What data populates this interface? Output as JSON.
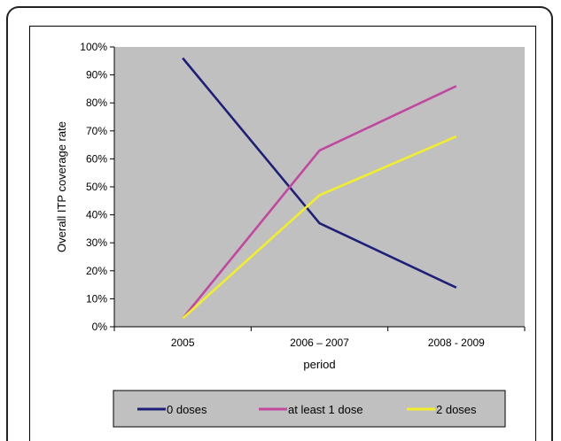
{
  "chart_data": {
    "type": "line",
    "title": "",
    "xlabel": "period",
    "ylabel": "Overall ITP coverage rate",
    "categories": [
      "2005",
      "2006 – 2007",
      "2008 - 2009"
    ],
    "y_ticks": [
      "0%",
      "10%",
      "20%",
      "30%",
      "40%",
      "50%",
      "60%",
      "70%",
      "80%",
      "90%",
      "100%"
    ],
    "ylim": [
      0,
      100
    ],
    "grid": false,
    "legend_position": "bottom",
    "plot_background": "#c0c0c0",
    "series": [
      {
        "name": "0 doses",
        "color": "#1f1f78",
        "values": [
          96,
          37,
          14
        ]
      },
      {
        "name": "at least 1 dose",
        "color": "#c2479f",
        "values": [
          3,
          63,
          86
        ]
      },
      {
        "name": "2 doses",
        "color": "#f2ee2a",
        "values": [
          3,
          47,
          68
        ]
      }
    ]
  }
}
